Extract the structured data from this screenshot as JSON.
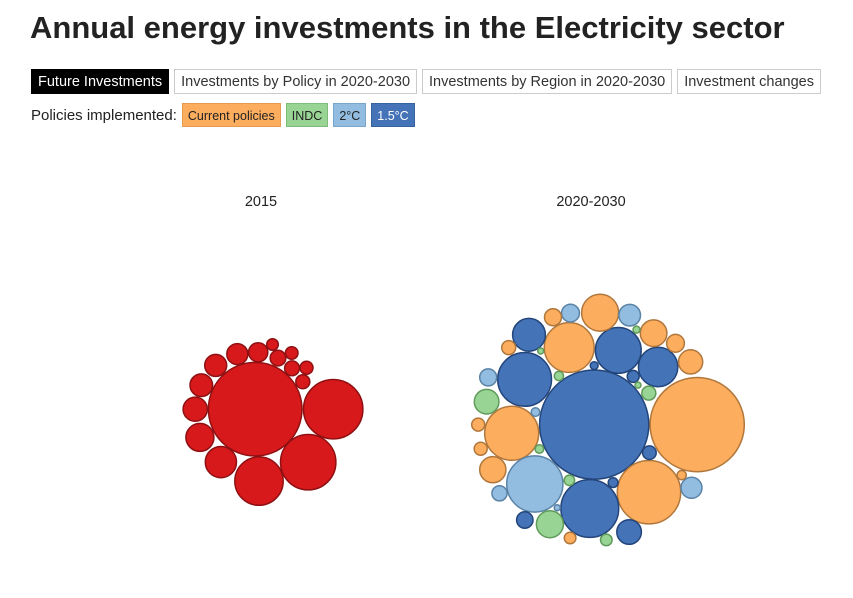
{
  "title": "Annual energy investments in the Electricity sector",
  "tabs": [
    {
      "label": "Future Investments",
      "active": true
    },
    {
      "label": "Investments by Policy in 2020-2030",
      "active": false
    },
    {
      "label": "Investments by Region in 2020-2030",
      "active": false
    },
    {
      "label": "Investment changes",
      "active": false
    }
  ],
  "policies": {
    "label": "Policies implemented:",
    "items": [
      {
        "label": "Current policies",
        "color": "#fdad5e"
      },
      {
        "label": "INDC",
        "color": "#98d494"
      },
      {
        "label": "2°C",
        "color": "#92bde0"
      },
      {
        "label": "1.5°C",
        "color": "#4473b8"
      }
    ]
  },
  "colors": {
    "2015": "#d7191c",
    "Current policies": "#fdad5e",
    "INDC": "#98d494",
    "2°C": "#92bde0",
    "1.5°C": "#4473b8"
  },
  "chart_data": {
    "type": "bubble",
    "panels": [
      {
        "label": "2015",
        "bubbles": [
          {
            "group": "2015",
            "value": 3600
          },
          {
            "group": "2015",
            "value": 1450
          },
          {
            "group": "2015",
            "value": 1260
          },
          {
            "group": "2015",
            "value": 960
          },
          {
            "group": "2015",
            "value": 400
          },
          {
            "group": "2015",
            "value": 320
          },
          {
            "group": "2015",
            "value": 240
          },
          {
            "group": "2015",
            "value": 210
          },
          {
            "group": "2015",
            "value": 200
          },
          {
            "group": "2015",
            "value": 180
          },
          {
            "group": "2015",
            "value": 150
          },
          {
            "group": "2015",
            "value": 100
          },
          {
            "group": "2015",
            "value": 90
          },
          {
            "group": "2015",
            "value": 80
          },
          {
            "group": "2015",
            "value": 70
          },
          {
            "group": "2015",
            "value": 65
          },
          {
            "group": "2015",
            "value": 55
          }
        ]
      },
      {
        "label": "2020-2030",
        "bubbles": [
          {
            "group": "1.5°C",
            "value": 4900
          },
          {
            "group": "Current policies",
            "value": 3650
          },
          {
            "group": "Current policies",
            "value": 1650
          },
          {
            "group": "Current policies",
            "value": 1200
          },
          {
            "group": "2°C",
            "value": 1300
          },
          {
            "group": "1.5°C",
            "value": 1190
          },
          {
            "group": "1.5°C",
            "value": 1370
          },
          {
            "group": "Current policies",
            "value": 1020
          },
          {
            "group": "1.5°C",
            "value": 860
          },
          {
            "group": "1.5°C",
            "value": 640
          },
          {
            "group": "Current policies",
            "value": 560
          },
          {
            "group": "1.5°C",
            "value": 440
          },
          {
            "group": "Current policies",
            "value": 280
          },
          {
            "group": "Current policies",
            "value": 290
          },
          {
            "group": "INDC",
            "value": 300
          },
          {
            "group": "INDC",
            "value": 250
          },
          {
            "group": "2°C",
            "value": 190
          },
          {
            "group": "1.5°C",
            "value": 250
          },
          {
            "group": "Current policies",
            "value": 240
          },
          {
            "group": "2°C",
            "value": 180
          },
          {
            "group": "2°C",
            "value": 130
          },
          {
            "group": "Current policies",
            "value": 130
          },
          {
            "group": "Current policies",
            "value": 120
          },
          {
            "group": "2°C",
            "value": 120
          },
          {
            "group": "1.5°C",
            "value": 110
          },
          {
            "group": "INDC",
            "value": 80
          },
          {
            "group": "Current policies",
            "value": 80
          },
          {
            "group": "2°C",
            "value": 95
          },
          {
            "group": "Current policies",
            "value": 70
          },
          {
            "group": "1.5°C",
            "value": 75
          },
          {
            "group": "Current policies",
            "value": 70
          },
          {
            "group": "INDC",
            "value": 55
          },
          {
            "group": "1.5°C",
            "value": 60
          },
          {
            "group": "Current policies",
            "value": 55
          },
          {
            "group": "INDC",
            "value": 45
          },
          {
            "group": "INDC",
            "value": 35
          },
          {
            "group": "1.5°C",
            "value": 40
          },
          {
            "group": "Current policies",
            "value": 35
          },
          {
            "group": "INDC",
            "value": 30
          },
          {
            "group": "2°C",
            "value": 30
          },
          {
            "group": "1.5°C",
            "value": 25
          },
          {
            "group": "INDC",
            "value": 20
          },
          {
            "group": "INDC",
            "value": 15
          },
          {
            "group": "2°C",
            "value": 15
          },
          {
            "group": "INDC",
            "value": 15
          }
        ]
      }
    ]
  }
}
